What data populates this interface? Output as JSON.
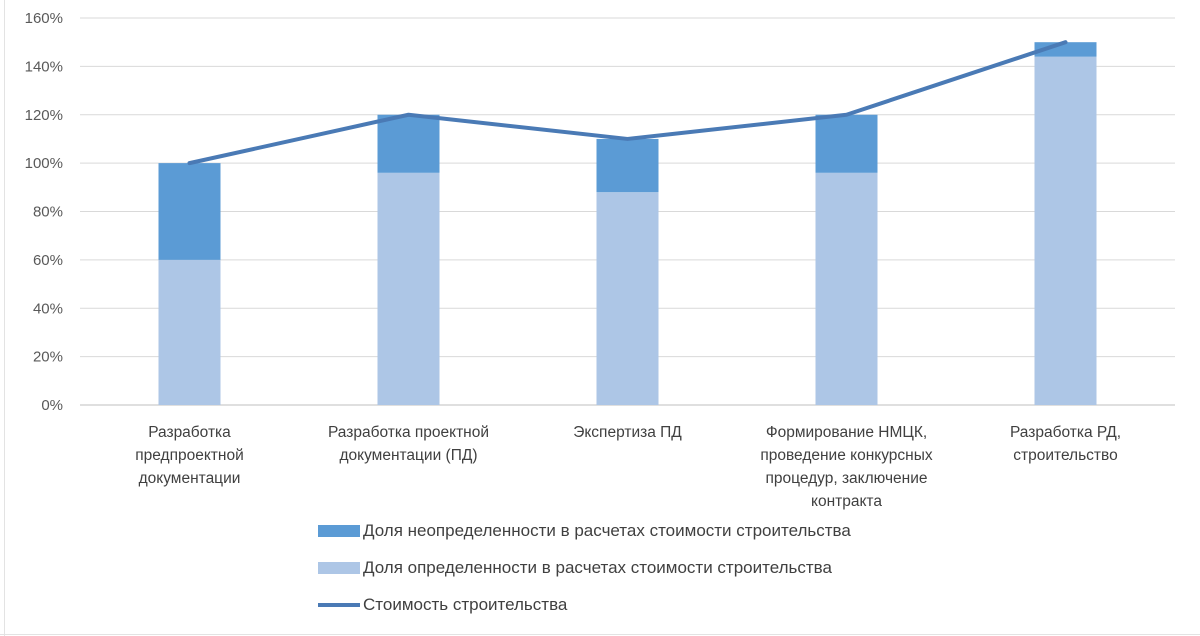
{
  "chart_data": {
    "type": "bar",
    "stacked": true,
    "categories": [
      [
        "Разработка",
        "предпроектной",
        "документации"
      ],
      [
        "Разработка проектной",
        "документации (ПД)"
      ],
      [
        "Экспертиза ПД"
      ],
      [
        "Формирование НМЦК,",
        "проведение конкурсных",
        "процедур, заключение",
        "контракта"
      ],
      [
        "Разработка РД,",
        "строительство"
      ]
    ],
    "series": [
      {
        "name": "Доля определенности в расчетах стоимости строительства",
        "kind": "bar",
        "color": "#adc6e6",
        "values": [
          60,
          96,
          88,
          96,
          144
        ]
      },
      {
        "name": "Доля неопределенности в расчетах стоимости строительства",
        "kind": "bar",
        "color": "#5b9bd5",
        "values": [
          40,
          24,
          22,
          24,
          6
        ]
      },
      {
        "name": "Стоимость строительства",
        "kind": "line",
        "color": "#4a7ab5",
        "values": [
          100,
          120,
          110,
          120,
          150
        ]
      }
    ],
    "ylim": [
      0,
      160
    ],
    "yticks": [
      "0%",
      "20%",
      "40%",
      "60%",
      "80%",
      "100%",
      "120%",
      "140%",
      "160%"
    ],
    "grid": true,
    "legend_position": "bottom",
    "legend_order": [
      1,
      0,
      2
    ]
  }
}
